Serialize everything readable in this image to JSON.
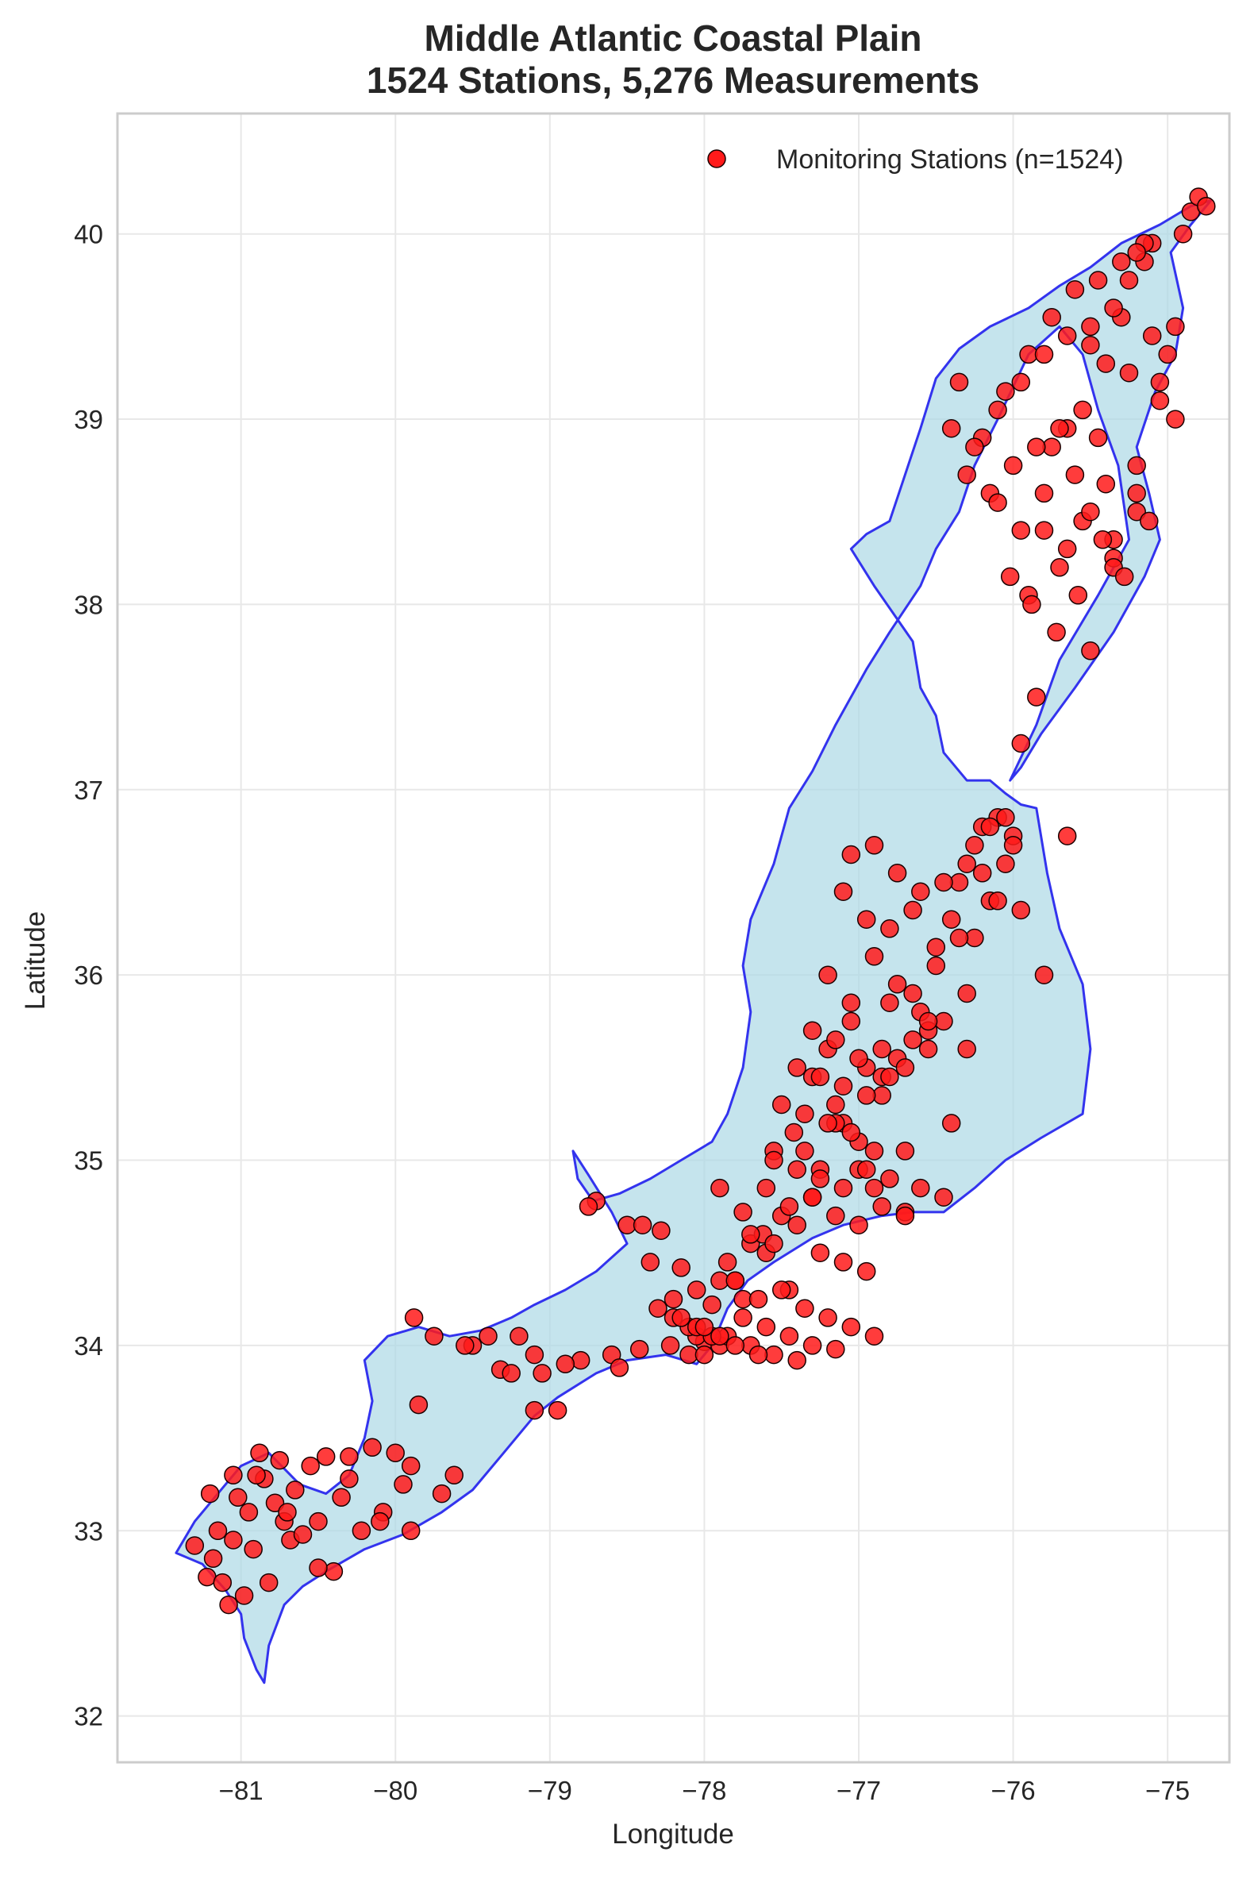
{
  "chart_data": {
    "type": "scatter",
    "title_line1": "Middle Atlantic Coastal Plain",
    "title_line2": "1524 Stations, 5,276 Measurements",
    "xlabel": "Longitude",
    "ylabel": "Latitude",
    "xlim": [
      -81.8,
      -74.6
    ],
    "ylim": [
      31.75,
      40.65
    ],
    "x_ticks": [
      -81,
      -80,
      -79,
      -78,
      -77,
      -76,
      -75
    ],
    "x_tick_labels": [
      "−81",
      "−80",
      "−79",
      "−78",
      "−77",
      "−76",
      "−75"
    ],
    "y_ticks": [
      32,
      33,
      34,
      35,
      36,
      37,
      38,
      39,
      40
    ],
    "y_tick_labels": [
      "32",
      "33",
      "34",
      "35",
      "36",
      "37",
      "38",
      "39",
      "40"
    ],
    "grid": true,
    "legend": {
      "position": "top-right",
      "label": "Monitoring Stations (n=1524)"
    },
    "colors": {
      "marker_fill": "#ff1a1a",
      "marker_edge": "#1a0000",
      "region_fill": "#add8e6",
      "region_edge": "#3333ee",
      "grid": "#e8e8e8",
      "frame": "#cccccc"
    },
    "region_outline": [
      [
        -81.42,
        32.88
      ],
      [
        -81.25,
        32.82
      ],
      [
        -81.1,
        32.68
      ],
      [
        -81.0,
        32.55
      ],
      [
        -80.98,
        32.42
      ],
      [
        -80.9,
        32.25
      ],
      [
        -80.85,
        32.18
      ],
      [
        -80.82,
        32.38
      ],
      [
        -80.72,
        32.6
      ],
      [
        -80.6,
        32.7
      ],
      [
        -80.45,
        32.78
      ],
      [
        -80.2,
        32.9
      ],
      [
        -79.95,
        32.98
      ],
      [
        -79.7,
        33.1
      ],
      [
        -79.5,
        33.22
      ],
      [
        -79.3,
        33.42
      ],
      [
        -79.1,
        33.62
      ],
      [
        -78.95,
        33.72
      ],
      [
        -78.7,
        33.85
      ],
      [
        -78.5,
        33.92
      ],
      [
        -78.25,
        33.95
      ],
      [
        -78.05,
        33.9
      ],
      [
        -77.95,
        34.0
      ],
      [
        -77.85,
        34.2
      ],
      [
        -77.72,
        34.35
      ],
      [
        -77.55,
        34.45
      ],
      [
        -77.3,
        34.58
      ],
      [
        -77.1,
        34.65
      ],
      [
        -76.85,
        34.7
      ],
      [
        -76.65,
        34.72
      ],
      [
        -76.45,
        34.72
      ],
      [
        -76.25,
        34.85
      ],
      [
        -76.05,
        35.0
      ],
      [
        -75.82,
        35.12
      ],
      [
        -75.55,
        35.25
      ],
      [
        -75.5,
        35.6
      ],
      [
        -75.55,
        35.95
      ],
      [
        -75.7,
        36.25
      ],
      [
        -75.78,
        36.55
      ],
      [
        -75.85,
        36.9
      ],
      [
        -75.95,
        36.92
      ],
      [
        -76.05,
        36.98
      ],
      [
        -76.15,
        37.05
      ],
      [
        -76.3,
        37.05
      ],
      [
        -76.45,
        37.2
      ],
      [
        -76.5,
        37.4
      ],
      [
        -76.6,
        37.55
      ],
      [
        -76.65,
        37.8
      ],
      [
        -76.9,
        38.1
      ],
      [
        -77.05,
        38.3
      ],
      [
        -76.95,
        38.38
      ],
      [
        -76.8,
        38.45
      ],
      [
        -76.72,
        38.65
      ],
      [
        -76.6,
        38.95
      ],
      [
        -76.5,
        39.22
      ],
      [
        -76.35,
        39.38
      ],
      [
        -76.15,
        39.5
      ],
      [
        -75.9,
        39.6
      ],
      [
        -75.7,
        39.72
      ],
      [
        -75.5,
        39.82
      ],
      [
        -75.3,
        39.95
      ],
      [
        -75.05,
        40.05
      ],
      [
        -74.85,
        40.15
      ],
      [
        -74.72,
        40.18
      ],
      [
        -74.85,
        40.05
      ],
      [
        -74.98,
        39.9
      ],
      [
        -74.9,
        39.6
      ],
      [
        -74.95,
        39.35
      ],
      [
        -75.08,
        39.15
      ],
      [
        -75.2,
        38.85
      ],
      [
        -75.12,
        38.6
      ],
      [
        -75.05,
        38.35
      ],
      [
        -75.15,
        38.15
      ],
      [
        -75.35,
        37.85
      ],
      [
        -75.6,
        37.55
      ],
      [
        -75.82,
        37.3
      ],
      [
        -75.95,
        37.12
      ],
      [
        -76.02,
        37.05
      ],
      [
        -75.85,
        37.35
      ],
      [
        -75.7,
        37.7
      ],
      [
        -75.45,
        38.05
      ],
      [
        -75.25,
        38.35
      ],
      [
        -75.32,
        38.75
      ],
      [
        -75.45,
        39.05
      ],
      [
        -75.55,
        39.35
      ],
      [
        -75.7,
        39.5
      ],
      [
        -75.9,
        39.35
      ],
      [
        -76.1,
        39.0
      ],
      [
        -76.25,
        38.75
      ],
      [
        -76.35,
        38.5
      ],
      [
        -76.5,
        38.3
      ],
      [
        -76.6,
        38.1
      ],
      [
        -76.8,
        37.85
      ],
      [
        -76.95,
        37.65
      ],
      [
        -77.15,
        37.35
      ],
      [
        -77.3,
        37.1
      ],
      [
        -77.45,
        36.9
      ],
      [
        -77.55,
        36.6
      ],
      [
        -77.7,
        36.3
      ],
      [
        -77.75,
        36.05
      ],
      [
        -77.7,
        35.8
      ],
      [
        -77.75,
        35.5
      ],
      [
        -77.85,
        35.25
      ],
      [
        -77.95,
        35.1
      ],
      [
        -78.15,
        35.0
      ],
      [
        -78.35,
        34.9
      ],
      [
        -78.55,
        34.82
      ],
      [
        -78.72,
        34.78
      ],
      [
        -78.82,
        34.9
      ],
      [
        -78.85,
        35.05
      ],
      [
        -78.75,
        34.92
      ],
      [
        -78.6,
        34.72
      ],
      [
        -78.5,
        34.55
      ],
      [
        -78.7,
        34.4
      ],
      [
        -78.9,
        34.3
      ],
      [
        -79.1,
        34.22
      ],
      [
        -79.25,
        34.15
      ],
      [
        -79.45,
        34.08
      ],
      [
        -79.65,
        34.05
      ],
      [
        -79.85,
        34.1
      ],
      [
        -80.05,
        34.05
      ],
      [
        -80.2,
        33.92
      ],
      [
        -80.15,
        33.7
      ],
      [
        -80.2,
        33.5
      ],
      [
        -80.3,
        33.3
      ],
      [
        -80.45,
        33.2
      ],
      [
        -80.62,
        33.25
      ],
      [
        -80.82,
        33.42
      ],
      [
        -81.0,
        33.35
      ],
      [
        -81.15,
        33.2
      ],
      [
        -81.3,
        33.05
      ],
      [
        -81.42,
        32.88
      ]
    ],
    "x": [
      -81.3,
      -81.22,
      -81.18,
      -81.15,
      -81.12,
      -81.08,
      -81.05,
      -81.02,
      -80.98,
      -80.95,
      -80.92,
      -80.88,
      -80.85,
      -80.82,
      -80.78,
      -80.75,
      -80.72,
      -80.68,
      -80.65,
      -80.6,
      -80.55,
      -80.5,
      -80.45,
      -80.4,
      -80.35,
      -80.3,
      -80.22,
      -80.15,
      -80.08,
      -80.0,
      -79.95,
      -79.9,
      -79.88,
      -79.85,
      -79.75,
      -79.62,
      -79.5,
      -79.32,
      -79.2,
      -79.1,
      -79.05,
      -78.95,
      -78.8,
      -78.7,
      -78.6,
      -78.5,
      -78.42,
      -78.35,
      -78.28,
      -78.22,
      -78.15,
      -78.1,
      -78.05,
      -78.0,
      -77.95,
      -77.9,
      -77.85,
      -77.8,
      -77.75,
      -77.7,
      -77.62,
      -77.55,
      -77.5,
      -77.42,
      -77.35,
      -77.3,
      -77.25,
      -77.2,
      -77.15,
      -77.1,
      -77.05,
      -77.0,
      -76.95,
      -76.9,
      -76.85,
      -76.8,
      -76.75,
      -76.7,
      -76.65,
      -76.6,
      -76.55,
      -76.5,
      -76.45,
      -76.4,
      -76.35,
      -76.3,
      -76.25,
      -76.2,
      -76.15,
      -76.1,
      -76.05,
      -76.0,
      -75.95,
      -75.9,
      -75.85,
      -75.8,
      -75.75,
      -75.7,
      -75.65,
      -75.6,
      -75.55,
      -75.5,
      -75.45,
      -75.4,
      -75.35,
      -75.3,
      -75.25,
      -75.2,
      -75.15,
      -75.1,
      -75.05,
      -75.0,
      -74.95,
      -74.9,
      -74.85,
      -74.8,
      -74.75,
      -81.2,
      -81.05,
      -80.9,
      -80.7,
      -80.5,
      -80.3,
      -80.1,
      -79.9,
      -79.7,
      -79.55,
      -79.4,
      -79.25,
      -79.1,
      -78.9,
      -78.75,
      -78.55,
      -78.4,
      -78.2,
      -78.05,
      -77.9,
      -77.75,
      -77.6,
      -77.45,
      -77.3,
      -77.15,
      -77.0,
      -76.85,
      -76.7,
      -76.55,
      -76.4,
      -76.25,
      -76.1,
      -75.95,
      -75.8,
      -75.65,
      -75.5,
      -75.35,
      -75.2,
      -75.05,
      -74.95,
      -76.35,
      -76.2,
      -76.05,
      -75.9,
      -75.75,
      -75.6,
      -75.45,
      -75.3,
      -75.15,
      -76.4,
      -76.25,
      -76.1,
      -75.95,
      -75.8,
      -75.65,
      -75.5,
      -75.35,
      -75.2,
      -76.3,
      -76.15,
      -76.0,
      -75.85,
      -75.7,
      -75.55,
      -75.4,
      -75.25,
      -75.1,
      -76.1,
      -75.95,
      -75.8,
      -75.65,
      -75.5,
      -75.35,
      -75.2,
      -76.02,
      -75.88,
      -75.72,
      -75.58,
      -75.42,
      -75.28,
      -75.12,
      -77.05,
      -76.9,
      -76.75,
      -76.6,
      -76.45,
      -76.3,
      -76.15,
      -76.0,
      -77.1,
      -76.95,
      -76.8,
      -76.65,
      -76.5,
      -76.35,
      -76.2,
      -76.05,
      -77.2,
      -77.05,
      -76.9,
      -76.75,
      -76.6,
      -76.45,
      -76.3,
      -77.3,
      -77.15,
      -77.0,
      -76.85,
      -76.7,
      -76.55,
      -77.4,
      -77.25,
      -77.1,
      -76.95,
      -76.8,
      -76.65,
      -77.5,
      -77.35,
      -77.2,
      -77.05,
      -76.9,
      -77.55,
      -77.4,
      -77.25,
      -77.1,
      -76.95,
      -76.8,
      -77.6,
      -77.45,
      -77.3,
      -77.15,
      -77.0,
      -76.85,
      -76.7,
      -77.7,
      -77.55,
      -77.4,
      -77.25,
      -77.1,
      -76.95,
      -77.8,
      -77.65,
      -77.5,
      -77.35,
      -77.2,
      -77.05,
      -76.9,
      -77.9,
      -77.75,
      -77.6,
      -77.45,
      -77.3,
      -77.15,
      -78.0,
      -77.85,
      -77.7,
      -77.55,
      -77.4,
      -78.1,
      -77.95,
      -77.8,
      -77.65,
      -78.2,
      -78.05,
      -77.9,
      -78.3,
      -78.15,
      -78.0
    ],
    "y": [
      32.92,
      32.75,
      32.85,
      33.0,
      32.72,
      32.6,
      33.3,
      33.18,
      32.65,
      33.1,
      32.9,
      33.42,
      33.28,
      32.72,
      33.15,
      33.38,
      33.05,
      32.95,
      33.22,
      32.98,
      33.35,
      33.05,
      33.4,
      32.78,
      33.18,
      33.28,
      33.0,
      33.45,
      33.1,
      33.42,
      33.25,
      33.0,
      34.15,
      33.68,
      34.05,
      33.3,
      34.0,
      33.87,
      34.05,
      33.65,
      33.85,
      33.65,
      33.92,
      34.78,
      33.95,
      34.65,
      33.98,
      34.45,
      34.62,
      34.0,
      34.42,
      33.95,
      34.3,
      34.02,
      34.22,
      34.85,
      34.45,
      34.35,
      34.72,
      34.55,
      34.6,
      35.05,
      34.7,
      35.15,
      35.05,
      35.45,
      34.95,
      35.6,
      35.3,
      35.2,
      35.75,
      35.1,
      35.5,
      34.85,
      35.35,
      35.85,
      35.55,
      34.72,
      35.9,
      34.85,
      35.7,
      36.05,
      34.8,
      36.3,
      36.5,
      35.6,
      36.7,
      36.8,
      36.4,
      36.85,
      36.6,
      36.75,
      37.25,
      38.05,
      37.5,
      38.4,
      38.85,
      38.2,
      38.95,
      38.7,
      38.45,
      39.4,
      38.9,
      38.65,
      38.25,
      39.55,
      39.75,
      38.5,
      39.85,
      39.95,
      39.1,
      39.35,
      39.0,
      40.0,
      40.12,
      40.2,
      40.15,
      33.2,
      32.95,
      33.3,
      33.1,
      32.8,
      33.4,
      33.05,
      33.35,
      33.2,
      34.0,
      34.05,
      33.85,
      33.95,
      33.9,
      34.75,
      33.88,
      34.65,
      34.25,
      34.05,
      34.35,
      34.25,
      34.5,
      34.3,
      34.8,
      35.2,
      34.95,
      35.45,
      35.05,
      35.6,
      35.2,
      36.2,
      36.4,
      36.35,
      36.0,
      36.75,
      37.75,
      38.35,
      38.75,
      39.2,
      39.5,
      39.2,
      38.9,
      39.15,
      39.35,
      39.55,
      39.7,
      39.75,
      39.85,
      39.95,
      38.95,
      38.85,
      39.05,
      39.2,
      39.35,
      39.45,
      39.5,
      39.6,
      39.9,
      38.7,
      38.6,
      38.75,
      38.85,
      38.95,
      39.05,
      39.3,
      39.25,
      39.45,
      38.55,
      38.4,
      38.6,
      38.3,
      38.5,
      38.2,
      38.6,
      38.15,
      38.0,
      37.85,
      38.05,
      38.35,
      38.15,
      38.45,
      36.65,
      36.7,
      36.55,
      36.45,
      36.5,
      36.6,
      36.8,
      36.7,
      36.45,
      36.3,
      36.25,
      36.35,
      36.15,
      36.2,
      36.55,
      36.85,
      36.0,
      35.85,
      36.1,
      35.95,
      35.8,
      35.75,
      35.9,
      35.7,
      35.65,
      35.55,
      35.6,
      35.5,
      35.75,
      35.5,
      35.45,
      35.4,
      35.35,
      35.45,
      35.65,
      35.3,
      35.25,
      35.2,
      35.15,
      35.05,
      35.0,
      34.95,
      34.9,
      34.85,
      34.95,
      34.9,
      34.85,
      34.75,
      34.8,
      34.7,
      34.65,
      34.75,
      34.7,
      34.6,
      34.55,
      34.65,
      34.5,
      34.45,
      34.4,
      34.35,
      34.25,
      34.3,
      34.2,
      34.15,
      34.1,
      34.05,
      34.0,
      34.15,
      34.1,
      34.05,
      34.0,
      33.98,
      33.95,
      34.05,
      34.0,
      33.95,
      33.92,
      34.1,
      34.05,
      34.0,
      33.95,
      34.15,
      34.1,
      34.05,
      34.2,
      34.15,
      34.1
    ]
  }
}
